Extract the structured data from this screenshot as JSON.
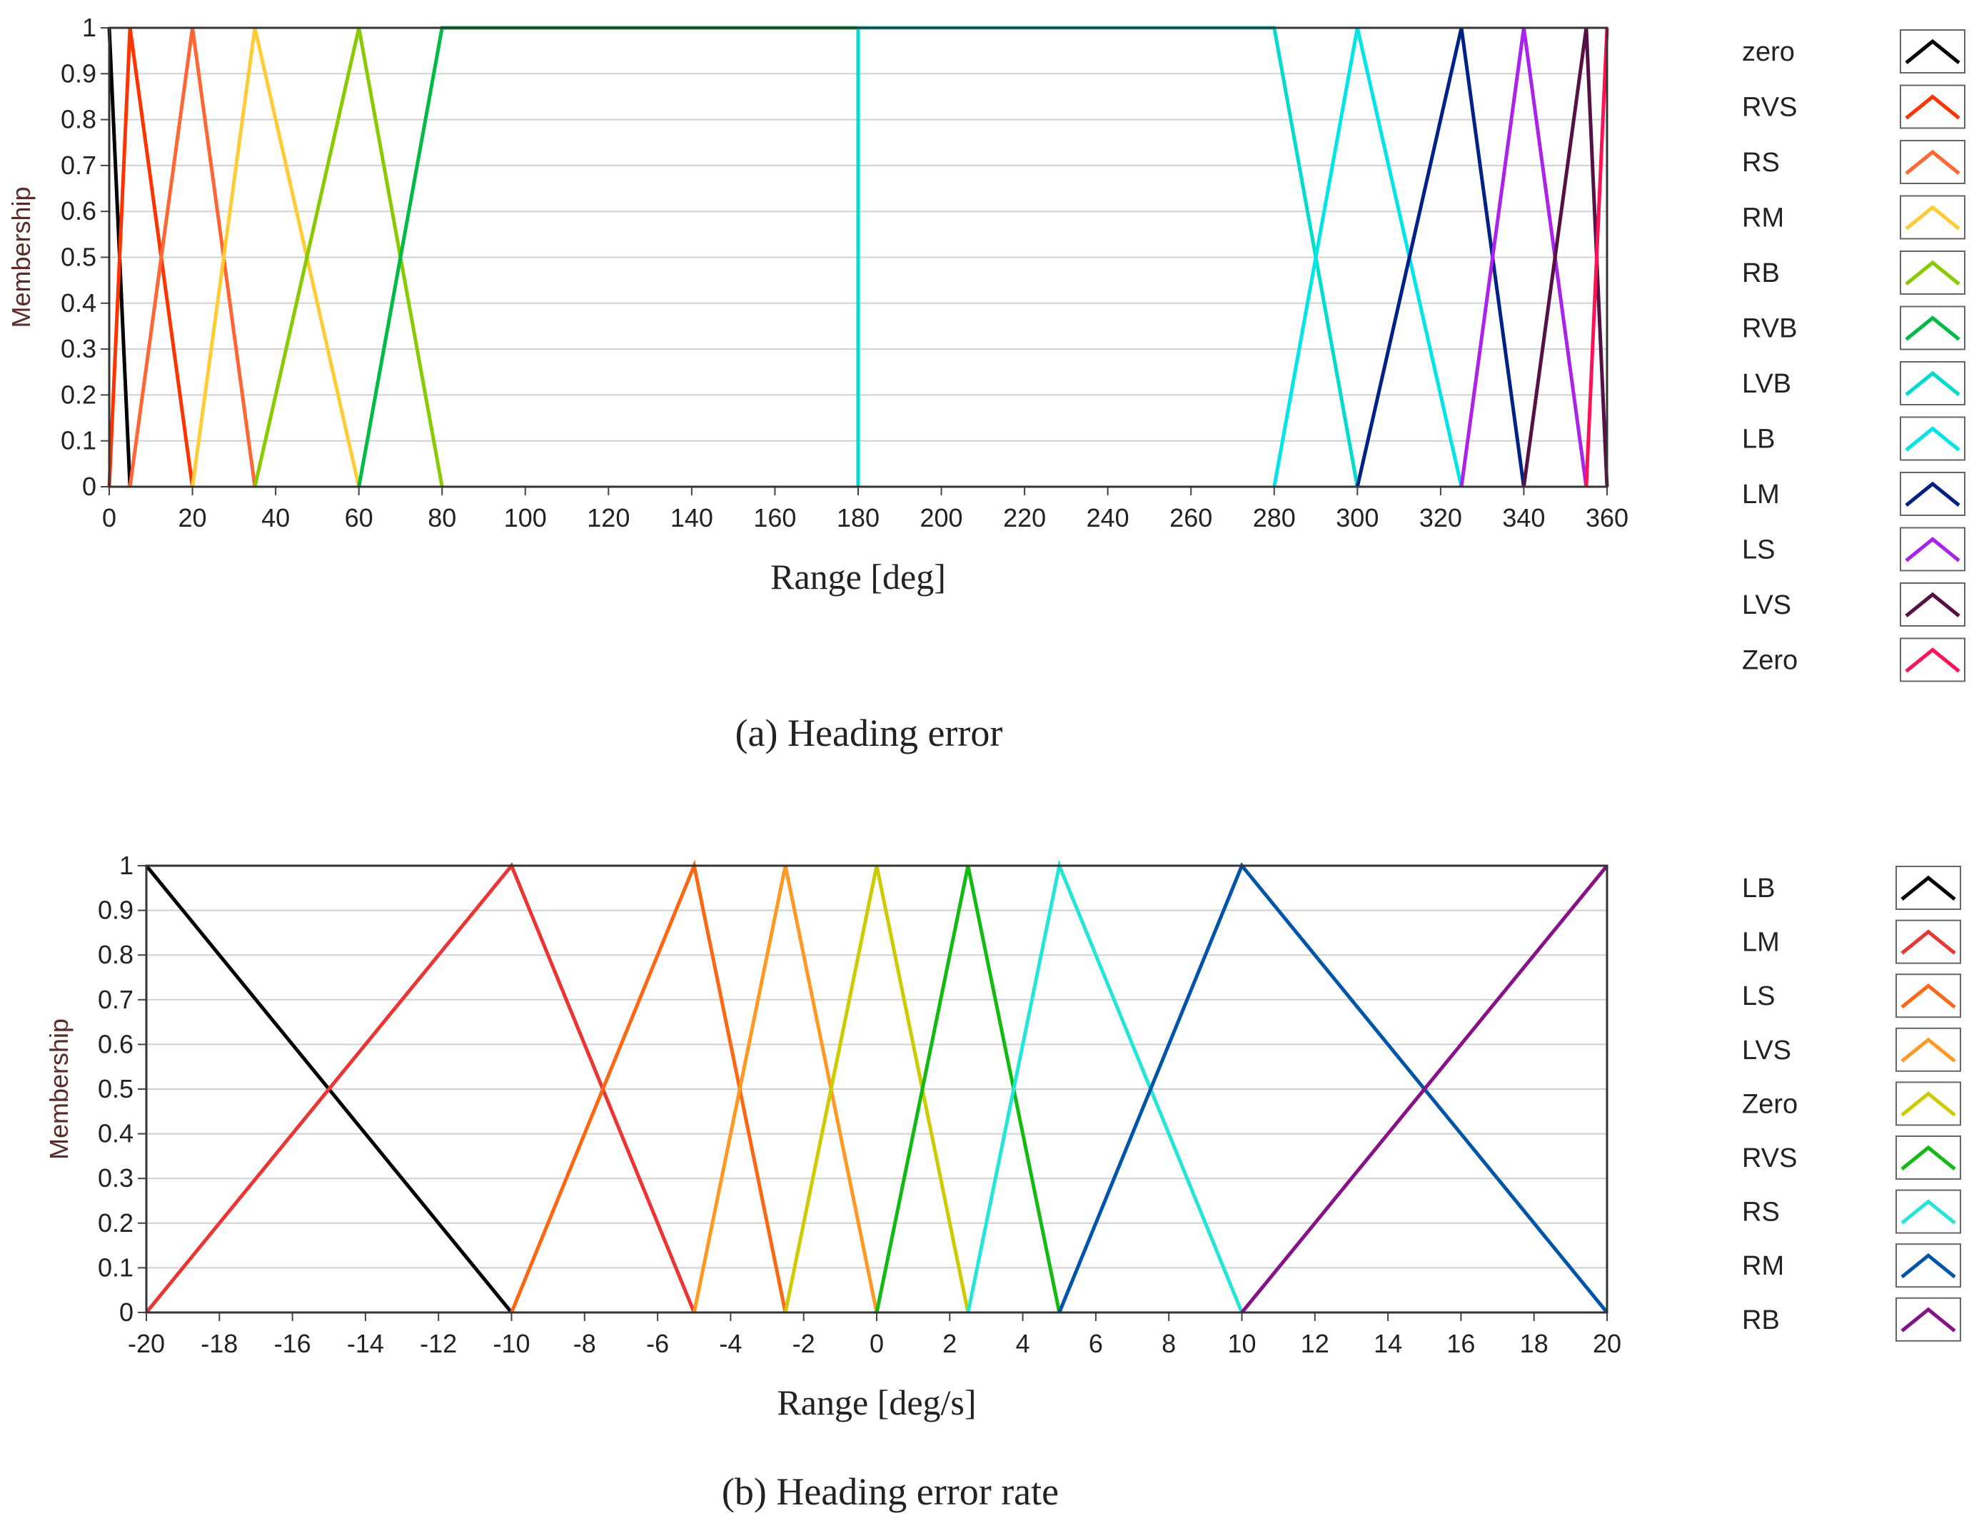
{
  "chart_data": [
    {
      "type": "line",
      "title": "",
      "caption": "(a) Heading error",
      "xlabel": "Range [deg]",
      "ylabel": "Membership",
      "xlim": [
        0,
        360
      ],
      "ylim": [
        0,
        1
      ],
      "xticks": [
        0,
        20,
        40,
        60,
        80,
        100,
        120,
        140,
        160,
        180,
        200,
        220,
        240,
        260,
        280,
        300,
        320,
        340,
        360
      ],
      "yticks": [
        0,
        0.1,
        0.2,
        0.3,
        0.4,
        0.5,
        0.6,
        0.7,
        0.8,
        0.9,
        1
      ],
      "xtick_labels": [
        "0",
        "20",
        "40",
        "60",
        "80",
        "100",
        "120",
        "140",
        "160",
        "180",
        "200",
        "220",
        "240",
        "260",
        "280",
        "300",
        "320",
        "340",
        "360"
      ],
      "ytick_labels": [
        "0",
        "0.1",
        "0.2",
        "0.3",
        "0.4",
        "0.5",
        "0.6",
        "0.7",
        "0.8",
        "0.9",
        "1"
      ],
      "grid": true,
      "legend_position": "right",
      "series": [
        {
          "name": "zero",
          "color": "#000000",
          "points": [
            [
              0,
              1
            ],
            [
              5,
              0
            ]
          ]
        },
        {
          "name": "RVS",
          "color": "#ff3300",
          "points": [
            [
              0,
              0
            ],
            [
              5,
              1
            ],
            [
              20,
              0
            ]
          ]
        },
        {
          "name": "RS",
          "color": "#ff6633",
          "points": [
            [
              5,
              0
            ],
            [
              20,
              1
            ],
            [
              35,
              0
            ]
          ]
        },
        {
          "name": "RM",
          "color": "#ffcc33",
          "points": [
            [
              20,
              0
            ],
            [
              35,
              1
            ],
            [
              60,
              0
            ]
          ]
        },
        {
          "name": "RB",
          "color": "#88cc00",
          "points": [
            [
              35,
              0
            ],
            [
              60,
              1
            ],
            [
              80,
              0
            ]
          ]
        },
        {
          "name": "RVB",
          "color": "#00bb44",
          "points": [
            [
              60,
              0
            ],
            [
              80,
              1
            ],
            [
              180,
              1
            ],
            [
              180,
              0
            ]
          ]
        },
        {
          "name": "LVB",
          "color": "#00ddcc",
          "points": [
            [
              180,
              0
            ],
            [
              180,
              1
            ],
            [
              280,
              1
            ],
            [
              300,
              0
            ]
          ]
        },
        {
          "name": "LB",
          "color": "#00e6e6",
          "points": [
            [
              280,
              0
            ],
            [
              300,
              1
            ],
            [
              325,
              0
            ]
          ]
        },
        {
          "name": "LM",
          "color": "#002288",
          "points": [
            [
              300,
              0
            ],
            [
              325,
              1
            ],
            [
              340,
              0
            ]
          ]
        },
        {
          "name": "LS",
          "color": "#aa22ee",
          "points": [
            [
              325,
              0
            ],
            [
              340,
              1
            ],
            [
              355,
              0
            ]
          ]
        },
        {
          "name": "LVS",
          "color": "#551144",
          "points": [
            [
              340,
              0
            ],
            [
              355,
              1
            ],
            [
              360,
              0
            ]
          ]
        },
        {
          "name": "Zero",
          "color": "#ff1155",
          "points": [
            [
              355,
              0
            ],
            [
              360,
              1
            ]
          ]
        }
      ]
    },
    {
      "type": "line",
      "title": "",
      "caption": "(b) Heading error rate",
      "xlabel": "Range [deg/s]",
      "ylabel": "Membership",
      "xlim": [
        -20,
        20
      ],
      "ylim": [
        0,
        1
      ],
      "xticks": [
        -20,
        -18,
        -16,
        -14,
        -12,
        -10,
        -8,
        -6,
        -4,
        -2,
        0,
        2,
        4,
        6,
        8,
        10,
        12,
        14,
        16,
        18,
        20
      ],
      "yticks": [
        0,
        0.1,
        0.2,
        0.3,
        0.4,
        0.5,
        0.6,
        0.7,
        0.8,
        0.9,
        1
      ],
      "xtick_labels": [
        "-20",
        "-18",
        "-16",
        "-14",
        "-12",
        "-10",
        "-8",
        "-6",
        "-4",
        "-2",
        "0",
        "2",
        "4",
        "6",
        "8",
        "10",
        "12",
        "14",
        "16",
        "18",
        "20"
      ],
      "ytick_labels": [
        "0",
        "0.1",
        "0.2",
        "0.3",
        "0.4",
        "0.5",
        "0.6",
        "0.7",
        "0.8",
        "0.9",
        "1"
      ],
      "grid": true,
      "legend_position": "right",
      "series": [
        {
          "name": "LB",
          "color": "#000000",
          "points": [
            [
              -20,
              1
            ],
            [
              -10,
              0
            ]
          ]
        },
        {
          "name": "LM",
          "color": "#ee3333",
          "points": [
            [
              -20,
              0
            ],
            [
              -10,
              1
            ],
            [
              -5,
              0
            ]
          ]
        },
        {
          "name": "LS",
          "color": "#ff6611",
          "points": [
            [
              -10,
              0
            ],
            [
              -5,
              1
            ],
            [
              -2.5,
              0
            ]
          ]
        },
        {
          "name": "LVS",
          "color": "#ff9922",
          "points": [
            [
              -5,
              0
            ],
            [
              -2.5,
              1
            ],
            [
              0,
              0
            ]
          ]
        },
        {
          "name": "Zero",
          "color": "#cccc00",
          "points": [
            [
              -2.5,
              0
            ],
            [
              0,
              1
            ],
            [
              2.5,
              0
            ]
          ]
        },
        {
          "name": "RVS",
          "color": "#11bb11",
          "points": [
            [
              0,
              0
            ],
            [
              2.5,
              1
            ],
            [
              5,
              0
            ]
          ]
        },
        {
          "name": "RS",
          "color": "#22e6d6",
          "points": [
            [
              2.5,
              0
            ],
            [
              5,
              1
            ],
            [
              10,
              0
            ]
          ]
        },
        {
          "name": "RM",
          "color": "#0055aa",
          "points": [
            [
              5,
              0
            ],
            [
              10,
              1
            ],
            [
              20,
              0
            ]
          ]
        },
        {
          "name": "RB",
          "color": "#881188",
          "points": [
            [
              10,
              0
            ],
            [
              20,
              1
            ]
          ]
        }
      ]
    }
  ]
}
